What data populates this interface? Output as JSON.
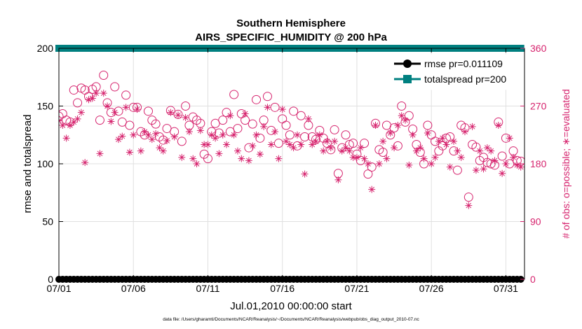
{
  "chart_data": {
    "type": "scatter",
    "title": "Southern Hemisphere",
    "subtitle": "AIRS_SPECIFIC_HUMIDITY @ 200 hPa",
    "xlabel": "Jul.01,2010 00:00:00 start",
    "ylabel_left": "rmse and totalspread",
    "ylabel_right": "# of obs: o=possible; ∗=evaluated",
    "footnote": "data file: /Users/gharamti/Documents/NCAR/Reanalysis/~/Documents/NCAR/Reanalysis/webpub/obs_diag_output_2010-07.nc",
    "xlim": [
      0,
      31.25
    ],
    "x_ticks": [
      {
        "value": 0,
        "label": "07/01"
      },
      {
        "value": 5,
        "label": "07/06"
      },
      {
        "value": 10,
        "label": "07/11"
      },
      {
        "value": 15,
        "label": "07/16"
      },
      {
        "value": 20,
        "label": "07/21"
      },
      {
        "value": 25,
        "label": "07/26"
      },
      {
        "value": 30,
        "label": "07/31"
      }
    ],
    "ylim_left": [
      0,
      200
    ],
    "y_ticks_left": [
      0,
      50,
      100,
      150,
      200
    ],
    "ylim_right": [
      0,
      360
    ],
    "y_ticks_right": [
      0,
      90,
      180,
      270,
      360
    ],
    "grid": true,
    "legend_position": "top-right",
    "series": [
      {
        "name": "rmse pr=0.011109",
        "color": "#000000",
        "marker": "filled-circle",
        "axis": "left",
        "value": 0
      },
      {
        "name": "totalspread pr=200",
        "color": "#008080",
        "marker": "filled-square",
        "axis": "left",
        "value": 200
      },
      {
        "name": "possible",
        "color": "#d6246e",
        "marker": "open-circle",
        "axis": "right",
        "points": [
          [
            0,
            254
          ],
          [
            0.25,
            258
          ],
          [
            0.5,
            248
          ],
          [
            0.75,
            245
          ],
          [
            1,
            295
          ],
          [
            1.25,
            275
          ],
          [
            1.5,
            298
          ],
          [
            1.75,
            295
          ],
          [
            2,
            285
          ],
          [
            2.25,
            296
          ],
          [
            2.5,
            300
          ],
          [
            2.75,
            248
          ],
          [
            3,
            318
          ],
          [
            3.25,
            275
          ],
          [
            3.5,
            260
          ],
          [
            3.75,
            300
          ],
          [
            4,
            262
          ],
          [
            4.25,
            245
          ],
          [
            4.5,
            287
          ],
          [
            4.75,
            240
          ],
          [
            5,
            268
          ],
          [
            5.25,
            268
          ],
          [
            5.5,
            230
          ],
          [
            5.75,
            225
          ],
          [
            6,
            262
          ],
          [
            6.25,
            248
          ],
          [
            6.5,
            242
          ],
          [
            6.75,
            222
          ],
          [
            7,
            217
          ],
          [
            7.25,
            235
          ],
          [
            7.5,
            263
          ],
          [
            7.75,
            230
          ],
          [
            8,
            257
          ],
          [
            8.25,
            215
          ],
          [
            8.5,
            270
          ],
          [
            8.75,
            240
          ],
          [
            9,
            253
          ],
          [
            9.25,
            248
          ],
          [
            9.5,
            243
          ],
          [
            9.75,
            195
          ],
          [
            10,
            188
          ],
          [
            10.25,
            230
          ],
          [
            10.5,
            243
          ],
          [
            10.75,
            228
          ],
          [
            11,
            248
          ],
          [
            11.25,
            260
          ],
          [
            11.5,
            230
          ],
          [
            11.75,
            288
          ],
          [
            12,
            235
          ],
          [
            12.25,
            258
          ],
          [
            12.5,
            248
          ],
          [
            12.75,
            205
          ],
          [
            13,
            242
          ],
          [
            13.25,
            280
          ],
          [
            13.5,
            220
          ],
          [
            13.75,
            248
          ],
          [
            14,
            285
          ],
          [
            14.25,
            232
          ],
          [
            14.5,
            268
          ],
          [
            14.75,
            212
          ],
          [
            15,
            250
          ],
          [
            15.25,
            240
          ],
          [
            15.5,
            225
          ],
          [
            15.75,
            262
          ],
          [
            16,
            208
          ],
          [
            16.25,
            255
          ],
          [
            16.5,
            222
          ],
          [
            16.75,
            240
          ],
          [
            17,
            222
          ],
          [
            17.25,
            218
          ],
          [
            17.5,
            232
          ],
          [
            17.75,
            220
          ],
          [
            18,
            212
          ],
          [
            18.25,
            202
          ],
          [
            18.5,
            233
          ],
          [
            18.75,
            165
          ],
          [
            19,
            205
          ],
          [
            19.25,
            225
          ],
          [
            19.5,
            210
          ],
          [
            19.75,
            212
          ],
          [
            20,
            195
          ],
          [
            20.25,
            185
          ],
          [
            20.5,
            212
          ],
          [
            20.75,
            164
          ],
          [
            21,
            175
          ],
          [
            21.25,
            243
          ],
          [
            21.5,
            202
          ],
          [
            21.75,
            198
          ],
          [
            22,
            240
          ],
          [
            22.25,
            225
          ],
          [
            22.5,
            236
          ],
          [
            22.75,
            208
          ],
          [
            23,
            270
          ],
          [
            23.25,
            245
          ],
          [
            23.5,
            255
          ],
          [
            23.75,
            234
          ],
          [
            24,
            210
          ],
          [
            24.25,
            198
          ],
          [
            24.5,
            180
          ],
          [
            24.75,
            240
          ],
          [
            25,
            225
          ],
          [
            25.25,
            215
          ],
          [
            25.5,
            200
          ],
          [
            25.75,
            208
          ],
          [
            26,
            220
          ],
          [
            26.25,
            222
          ],
          [
            26.5,
            200
          ],
          [
            26.75,
            170
          ],
          [
            27,
            240
          ],
          [
            27.25,
            236
          ],
          [
            27.5,
            128
          ],
          [
            27.75,
            210
          ],
          [
            28,
            206
          ],
          [
            28.25,
            185
          ],
          [
            28.5,
            190
          ],
          [
            28.75,
            182
          ],
          [
            29,
            180
          ],
          [
            29.25,
            178
          ],
          [
            29.5,
            245
          ],
          [
            29.75,
            192
          ],
          [
            30,
            220
          ],
          [
            30.25,
            180
          ],
          [
            30.5,
            200
          ],
          [
            30.75,
            185
          ],
          [
            31,
            184
          ]
        ]
      },
      {
        "name": "evaluated",
        "color": "#d6246e",
        "marker": "asterisk",
        "axis": "right",
        "points": [
          [
            0,
            247
          ],
          [
            0.25,
            240
          ],
          [
            0.5,
            220
          ],
          [
            0.75,
            240
          ],
          [
            1,
            245
          ],
          [
            1.25,
            250
          ],
          [
            1.5,
            260
          ],
          [
            1.75,
            182
          ],
          [
            2,
            280
          ],
          [
            2.25,
            282
          ],
          [
            2.5,
            290
          ],
          [
            2.75,
            196
          ],
          [
            3,
            290
          ],
          [
            3.25,
            270
          ],
          [
            3.5,
            246
          ],
          [
            3.75,
            260
          ],
          [
            4,
            218
          ],
          [
            4.25,
            223
          ],
          [
            4.5,
            268
          ],
          [
            4.75,
            198
          ],
          [
            5,
            225
          ],
          [
            5.25,
            265
          ],
          [
            5.5,
            200
          ],
          [
            5.75,
            230
          ],
          [
            6,
            225
          ],
          [
            6.25,
            218
          ],
          [
            6.5,
            227
          ],
          [
            6.75,
            205
          ],
          [
            7,
            200
          ],
          [
            7.25,
            216
          ],
          [
            7.5,
            260
          ],
          [
            7.75,
            222
          ],
          [
            8,
            256
          ],
          [
            8.25,
            190
          ],
          [
            8.5,
            252
          ],
          [
            8.75,
            230
          ],
          [
            9,
            188
          ],
          [
            9.25,
            180
          ],
          [
            9.5,
            232
          ],
          [
            9.75,
            210
          ],
          [
            10,
            210
          ],
          [
            10.25,
            225
          ],
          [
            10.5,
            220
          ],
          [
            10.75,
            196
          ],
          [
            11,
            225
          ],
          [
            11.25,
            210
          ],
          [
            11.5,
            255
          ],
          [
            11.75,
            225
          ],
          [
            12,
            200
          ],
          [
            12.25,
            188
          ],
          [
            12.5,
            258
          ],
          [
            12.75,
            185
          ],
          [
            13,
            208
          ],
          [
            13.25,
            225
          ],
          [
            13.5,
            195
          ],
          [
            13.75,
            238
          ],
          [
            14,
            268
          ],
          [
            14.25,
            210
          ],
          [
            14.5,
            230
          ],
          [
            14.75,
            188
          ],
          [
            15,
            265
          ],
          [
            15.25,
            215
          ],
          [
            15.5,
            210
          ],
          [
            15.75,
            205
          ],
          [
            16,
            225
          ],
          [
            16.25,
            210
          ],
          [
            16.5,
            164
          ],
          [
            16.75,
            250
          ],
          [
            17,
            210
          ],
          [
            17.25,
            215
          ],
          [
            17.5,
            225
          ],
          [
            17.75,
            200
          ],
          [
            18,
            215
          ],
          [
            18.25,
            205
          ],
          [
            18.5,
            215
          ],
          [
            18.75,
            155
          ],
          [
            19,
            200
          ],
          [
            19.25,
            205
          ],
          [
            19.5,
            200
          ],
          [
            19.75,
            190
          ],
          [
            20,
            190
          ],
          [
            20.25,
            205
          ],
          [
            20.5,
            188
          ],
          [
            20.75,
            180
          ],
          [
            21,
            140
          ],
          [
            21.25,
            240
          ],
          [
            21.5,
            180
          ],
          [
            21.75,
            215
          ],
          [
            22,
            188
          ],
          [
            22.25,
            228
          ],
          [
            22.5,
            205
          ],
          [
            22.75,
            240
          ],
          [
            23,
            255
          ],
          [
            23.25,
            248
          ],
          [
            23.5,
            178
          ],
          [
            23.75,
            225
          ],
          [
            24,
            200
          ],
          [
            24.25,
            205
          ],
          [
            24.5,
            188
          ],
          [
            24.75,
            228
          ],
          [
            25,
            180
          ],
          [
            25.25,
            190
          ],
          [
            25.5,
            215
          ],
          [
            25.75,
            220
          ],
          [
            26,
            210
          ],
          [
            26.25,
            175
          ],
          [
            26.5,
            215
          ],
          [
            26.75,
            200
          ],
          [
            27,
            190
          ],
          [
            27.25,
            230
          ],
          [
            27.5,
            115
          ],
          [
            27.75,
            238
          ],
          [
            28,
            170
          ],
          [
            28.25,
            200
          ],
          [
            28.5,
            172
          ],
          [
            28.75,
            205
          ],
          [
            29,
            200
          ],
          [
            29.25,
            185
          ],
          [
            29.5,
            240
          ],
          [
            29.75,
            165
          ],
          [
            30,
            180
          ],
          [
            30.25,
            220
          ],
          [
            30.5,
            190
          ],
          [
            30.75,
            178
          ],
          [
            31,
            175
          ]
        ]
      }
    ]
  }
}
